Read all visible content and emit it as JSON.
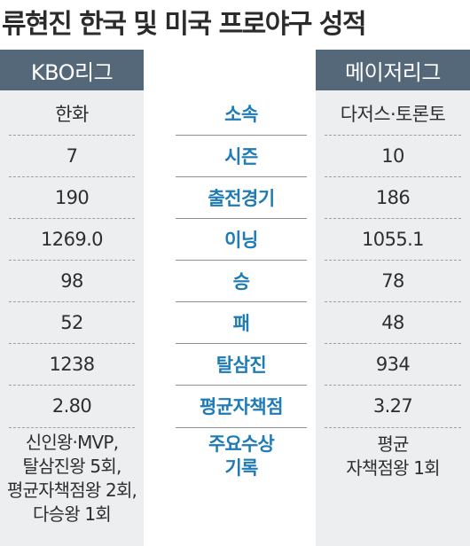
{
  "title": "류현진 한국 및 미국 프로야구 성적",
  "columns": {
    "left_header": "KBO리그",
    "right_header": "메이저리그"
  },
  "rows": [
    {
      "label": "소속",
      "kbo": "한화",
      "mlb": "다저스·토론토"
    },
    {
      "label": "시즌",
      "kbo": "7",
      "mlb": "10"
    },
    {
      "label": "출전경기",
      "kbo": "190",
      "mlb": "186"
    },
    {
      "label": "이닝",
      "kbo": "1269.0",
      "mlb": "1055.1"
    },
    {
      "label": "승",
      "kbo": "98",
      "mlb": "78"
    },
    {
      "label": "패",
      "kbo": "52",
      "mlb": "48"
    },
    {
      "label": "탈삼진",
      "kbo": "1238",
      "mlb": "934"
    },
    {
      "label": "평균자책점",
      "kbo": "2.80",
      "mlb": "3.27"
    }
  ],
  "awards": {
    "label_lines": [
      "주요수상",
      "기록"
    ],
    "kbo_lines": [
      "신인왕·MVP,",
      "탈삼진왕 5회,",
      "평균자책점왕 2회,",
      "다승왕 1회"
    ],
    "mlb_lines": [
      "평균",
      "자책점왕 1회"
    ]
  },
  "colors": {
    "header_bg": "#556879",
    "panel_bg": "#eceeef",
    "label_blue": "#1e7bb5"
  }
}
